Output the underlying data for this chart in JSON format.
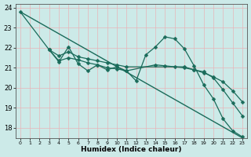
{
  "xlabel": "Humidex (Indice chaleur)",
  "ylabel": "",
  "bg_color": "#cceae8",
  "line_color": "#1a6b5a",
  "grid_color": "#e8b4b8",
  "xlim": [
    -0.5,
    23.5
  ],
  "ylim": [
    17.5,
    24.2
  ],
  "xticks": [
    0,
    1,
    2,
    3,
    4,
    5,
    6,
    7,
    8,
    9,
    10,
    11,
    12,
    13,
    14,
    15,
    16,
    17,
    18,
    19,
    20,
    21,
    22,
    23
  ],
  "yticks": [
    18,
    19,
    20,
    21,
    22,
    23,
    24
  ],
  "series": [
    {
      "x": [
        0,
        23
      ],
      "y": [
        23.8,
        17.5
      ],
      "marker": null,
      "markersize": 0,
      "linewidth": 1.0
    },
    {
      "x": [
        0,
        3,
        4,
        5,
        6,
        7,
        8,
        9,
        10,
        11,
        17,
        18,
        19,
        20,
        21,
        22,
        23
      ],
      "y": [
        23.8,
        21.9,
        21.6,
        21.8,
        21.55,
        21.45,
        21.35,
        21.25,
        21.15,
        21.05,
        21.05,
        20.9,
        20.75,
        20.55,
        20.3,
        19.85,
        19.3
      ],
      "marker": "D",
      "markersize": 2.5,
      "linewidth": 0.9
    },
    {
      "x": [
        3,
        4,
        5,
        6,
        7,
        8,
        9,
        10,
        11,
        12,
        13,
        14,
        15,
        16,
        17,
        18,
        19,
        20,
        21,
        22,
        23
      ],
      "y": [
        21.9,
        21.3,
        22.05,
        21.2,
        20.85,
        21.15,
        20.9,
        21.05,
        20.85,
        20.35,
        21.65,
        22.05,
        22.55,
        22.45,
        21.95,
        21.1,
        20.15,
        19.45,
        18.45,
        17.85,
        17.55
      ],
      "marker": "D",
      "markersize": 2.5,
      "linewidth": 0.9
    },
    {
      "x": [
        3,
        4,
        5,
        6,
        7,
        8,
        9,
        10,
        11,
        14,
        15,
        16,
        17,
        18,
        19,
        20,
        21,
        22,
        23
      ],
      "y": [
        21.9,
        21.35,
        21.5,
        21.4,
        21.25,
        21.15,
        21.0,
        20.95,
        20.85,
        21.15,
        21.1,
        21.05,
        21.0,
        20.9,
        20.8,
        20.5,
        19.9,
        19.25,
        18.6
      ],
      "marker": "D",
      "markersize": 2.5,
      "linewidth": 0.9
    }
  ]
}
